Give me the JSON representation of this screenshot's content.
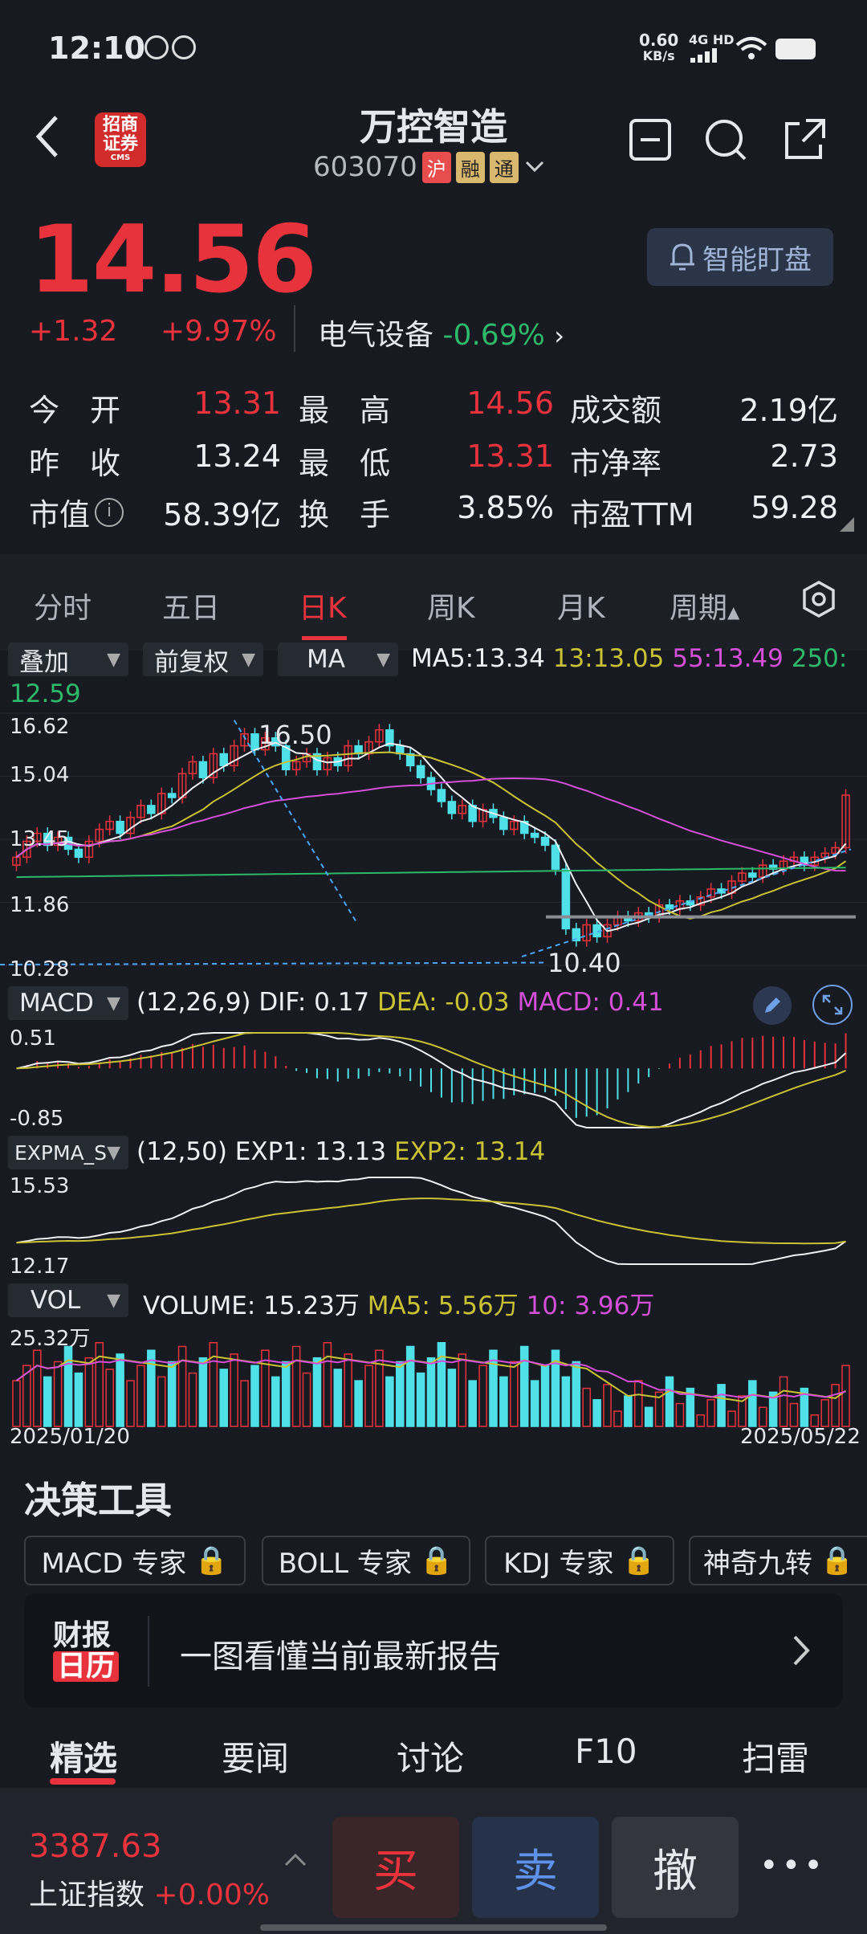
{
  "status_bar": {
    "time": "12:10",
    "net_speed": "0.60",
    "net_unit": "KB/s",
    "net_type": "4G HD"
  },
  "header": {
    "logo_text": "招商\n证券",
    "logo_sub": "CMS",
    "title": "万控智造",
    "code": "603070",
    "tags": [
      "沪",
      "融",
      "通"
    ]
  },
  "quote": {
    "price": "14.56",
    "change": "+1.32",
    "change_pct": "+9.97%",
    "smart_watch": "智能盯盘",
    "sector": "电气设备",
    "sector_pct": "-0.69%"
  },
  "stats": [
    {
      "label": "今　开",
      "value": "13.31",
      "color": "red"
    },
    {
      "label": "最　高",
      "value": "14.56",
      "color": "red"
    },
    {
      "label": "成交额",
      "value": "2.19亿",
      "color": "white"
    },
    {
      "label": "昨　收",
      "value": "13.24",
      "color": "white"
    },
    {
      "label": "最　低",
      "value": "13.31",
      "color": "red"
    },
    {
      "label": "市净率",
      "value": "2.73",
      "color": "white"
    },
    {
      "label": "市值",
      "value": "58.39亿",
      "color": "white"
    },
    {
      "label": "换　手",
      "value": "3.85%",
      "color": "white"
    },
    {
      "label": "市盈TTM",
      "value": "59.28",
      "color": "white"
    }
  ],
  "kline_tabs": [
    "分时",
    "五日",
    "日K",
    "周K",
    "月K",
    "周期"
  ],
  "selectors": {
    "overlay": "叠加",
    "adjust": "前复权",
    "indicator": "MA"
  },
  "ma": {
    "ma5": "MA5:13.34",
    "ma13": "13:13.05",
    "ma55": "55:13.49",
    "ma250_label": "250:",
    "ma250_val": "12.59"
  },
  "main_axis": [
    "16.62",
    "15.04",
    "13.45",
    "11.86",
    "10.28"
  ],
  "main_marks": {
    "high": "16.50",
    "low": "10.40"
  },
  "macd": {
    "name": "MACD",
    "params": "(12,26,9)",
    "dif": "DIF: 0.17",
    "dea": "DEA: -0.03",
    "macd": "MACD: 0.41",
    "top": "0.51",
    "bottom": "-0.85"
  },
  "expma": {
    "name": "EXPMA_S",
    "params": "(12,50)",
    "exp1": "EXP1: 13.13",
    "exp2": "EXP2: 13.14",
    "top": "15.53",
    "bottom": "12.17"
  },
  "vol": {
    "name": "VOL",
    "volume": "VOLUME: 15.23万",
    "ma5": "MA5: 5.56万",
    "ma10": "10: 3.96万",
    "top": "25.32万"
  },
  "dates": {
    "start": "2025/01/20",
    "end": "2025/05/22"
  },
  "tools": {
    "title": "决策工具",
    "items": [
      "MACD 专家",
      "BOLL 专家",
      "KDJ 专家",
      "神奇九转"
    ]
  },
  "report": {
    "badge_top": "财报",
    "badge_bottom": "日历",
    "text": "一图看懂当前最新报告"
  },
  "news_tabs": [
    "精选",
    "要闻",
    "讨论",
    "F10",
    "扫雷"
  ],
  "index": {
    "value": "3387.63",
    "name": "上证指数",
    "pct": "+0.00%"
  },
  "actions": {
    "buy": "买",
    "sell": "卖",
    "cancel": "撤",
    "more": "•••"
  },
  "chart_data": {
    "type": "candlestick",
    "x_range": [
      "2025/01/20",
      "2025/05/22"
    ],
    "ylim": [
      10.28,
      16.62
    ],
    "high_mark": 16.5,
    "low_mark": 10.4,
    "close": [
      13.0,
      13.4,
      13.6,
      13.3,
      13.5,
      13.2,
      13.0,
      13.4,
      13.7,
      13.9,
      13.6,
      14.0,
      14.3,
      14.1,
      14.6,
      14.5,
      15.1,
      15.4,
      15.0,
      15.6,
      15.3,
      15.8,
      16.1,
      15.7,
      16.0,
      15.8,
      15.2,
      15.4,
      15.6,
      15.2,
      15.5,
      15.3,
      15.8,
      15.6,
      15.9,
      16.2,
      15.8,
      15.6,
      15.3,
      15.0,
      14.7,
      14.4,
      14.1,
      14.3,
      13.9,
      14.2,
      14.0,
      13.7,
      13.9,
      13.6,
      13.5,
      13.3,
      12.7,
      11.2,
      10.9,
      11.3,
      11.0,
      11.3,
      11.5,
      11.4,
      11.6,
      11.5,
      11.8,
      11.7,
      11.9,
      11.8,
      12.0,
      12.2,
      12.1,
      12.4,
      12.6,
      12.5,
      12.8,
      12.7,
      12.9,
      13.0,
      12.8,
      13.0,
      13.1,
      13.24,
      14.56
    ]
  }
}
